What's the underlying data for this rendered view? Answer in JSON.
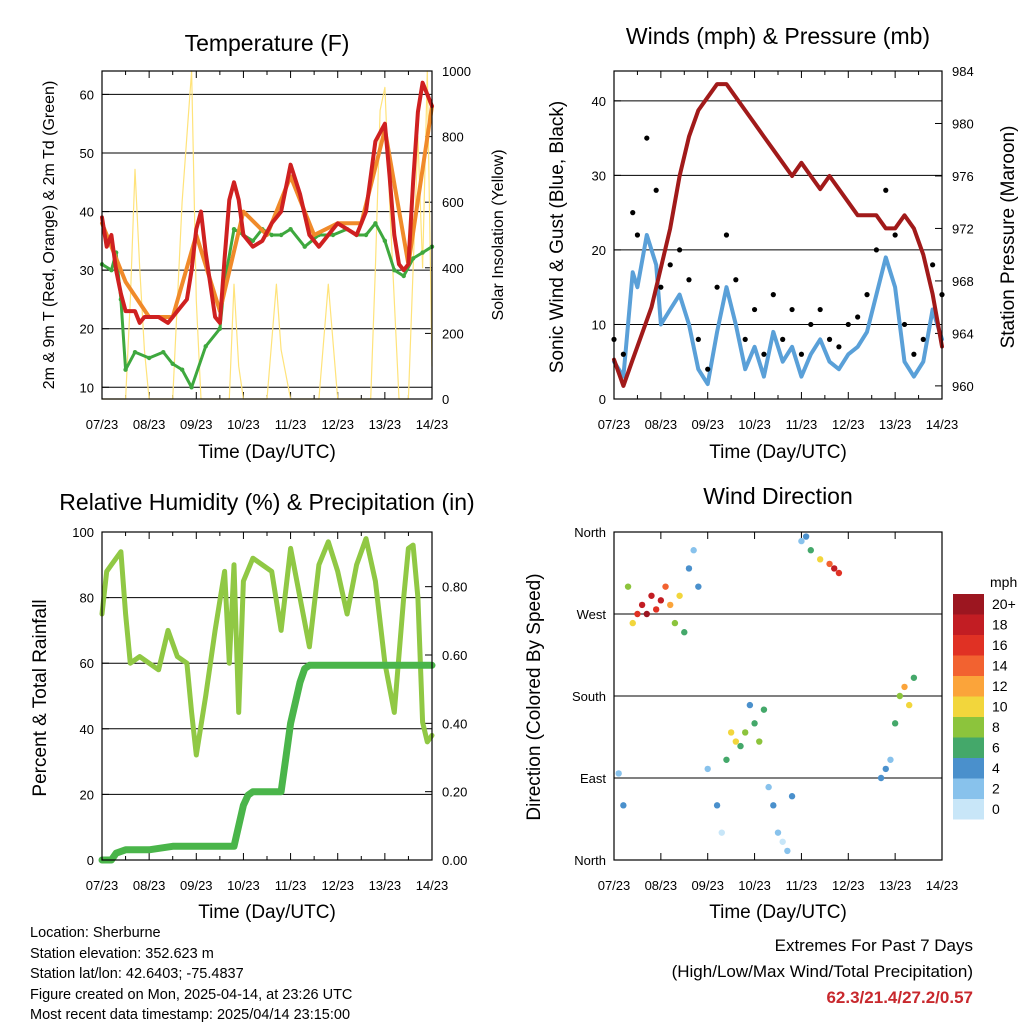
{
  "colors": {
    "temp_2m": "#cf2020",
    "temp_9m": "#f08a2a",
    "dewpoint": "#3ea83e",
    "solar": "#ffe37a",
    "gust": "#000000",
    "wind": "#5aa0d8",
    "pressure": "#a11a1a",
    "rh": "#90c844",
    "precip": "#4ab54a",
    "wind_scale": [
      "#c8e6f8",
      "#88c2ec",
      "#4a90cc",
      "#44a86a",
      "#8cc43c",
      "#f2d63c",
      "#fba43a",
      "#f26230",
      "#e03124",
      "#c21d23",
      "#9c1620"
    ]
  },
  "footer": {
    "location": "Location: Sherburne",
    "elevation": "Station elevation: 352.623 m",
    "latlon": "Station lat/lon: 42.6403; -75.4837",
    "created": "Figure created on Mon, 2025-04-14, at 23:26 UTC",
    "recent": "Most recent data timestamp: 2025/04/14 23:15:00"
  },
  "extremes": {
    "title": "Extremes For Past 7 Days",
    "subtitle": "(High/Low/Max Wind/Total Precipitation)",
    "values": "62.3/21.4/27.2/0.57"
  },
  "chart_data": [
    {
      "type": "line",
      "title": "Temperature (F)",
      "xlabel": "Time (Day/UTC)",
      "ylabel": "2m & 9m T (Red, Orange) & 2m Td (Green)",
      "ylabel_right": "Solar Insolation (Yellow)",
      "x_ticks": [
        "07/23",
        "08/23",
        "09/23",
        "10/23",
        "11/23",
        "12/23",
        "13/23",
        "14/23"
      ],
      "xlim": [
        0,
        7
      ],
      "ylim": [
        8,
        64
      ],
      "y_ticks": [
        10,
        20,
        30,
        40,
        50,
        60
      ],
      "ylim_right": [
        0,
        1000
      ],
      "y_ticks_right": [
        0,
        200,
        400,
        600,
        800,
        1000
      ],
      "grid": "horizontal",
      "series": [
        {
          "name": "2m T",
          "axis": "left",
          "x": [
            0,
            0.1,
            0.2,
            0.3,
            0.4,
            0.5,
            0.6,
            0.7,
            0.8,
            0.9,
            1.0,
            1.2,
            1.4,
            1.6,
            1.8,
            1.9,
            2.0,
            2.1,
            2.2,
            2.4,
            2.5,
            2.6,
            2.7,
            2.8,
            2.9,
            3.0,
            3.2,
            3.4,
            3.6,
            3.8,
            4.0,
            4.2,
            4.4,
            4.6,
            4.8,
            5.0,
            5.2,
            5.4,
            5.6,
            5.8,
            6.0,
            6.1,
            6.2,
            6.3,
            6.4,
            6.5,
            6.6,
            6.7,
            6.8,
            6.9,
            7.0
          ],
          "y": [
            39,
            34,
            36,
            30,
            26,
            23,
            23,
            23,
            21,
            22,
            22,
            22,
            21,
            23,
            25,
            30,
            37,
            40,
            33,
            22,
            21,
            32,
            42,
            45,
            42,
            36,
            34,
            35,
            38,
            40,
            48,
            43,
            36,
            34,
            36,
            38,
            37,
            36,
            40,
            52,
            55,
            46,
            36,
            31,
            30,
            31,
            45,
            57,
            62,
            60,
            58
          ]
        },
        {
          "name": "9m T",
          "axis": "left",
          "x": [
            0,
            0.5,
            1.0,
            1.5,
            2.0,
            2.5,
            3.0,
            3.5,
            4.0,
            4.5,
            5.0,
            5.5,
            6.0,
            6.5,
            7.0
          ],
          "y": [
            38,
            28,
            22,
            22,
            36,
            23,
            40,
            36,
            46,
            36,
            38,
            38,
            54,
            31,
            58
          ]
        },
        {
          "name": "2m Td",
          "axis": "left",
          "x": [
            0,
            0.2,
            0.3,
            0.4,
            0.5,
            0.7,
            1.0,
            1.3,
            1.5,
            1.7,
            1.9,
            2.2,
            2.5,
            2.6,
            2.8,
            3.0,
            3.2,
            3.4,
            3.6,
            3.8,
            4.0,
            4.3,
            4.6,
            4.9,
            5.2,
            5.4,
            5.6,
            5.8,
            6.0,
            6.2,
            6.4,
            6.6,
            6.8,
            7.0
          ],
          "y": [
            31,
            30,
            33,
            25,
            13,
            16,
            15,
            16,
            14,
            13,
            10,
            17,
            20,
            28,
            37,
            36,
            35,
            37,
            36,
            36,
            37,
            34,
            36,
            36,
            37,
            36,
            36,
            38,
            35,
            30,
            29,
            32,
            33,
            34
          ]
        },
        {
          "name": "Solar",
          "axis": "right",
          "x": [
            0,
            0.5,
            0.6,
            0.7,
            0.8,
            0.9,
            1.0,
            1.5,
            1.7,
            1.9,
            2.0,
            2.1,
            2.3,
            2.5,
            2.7,
            2.8,
            2.9,
            3.0,
            3.3,
            3.5,
            3.7,
            3.8,
            4.0,
            4.3,
            4.6,
            4.8,
            5.0,
            5.2,
            5.5,
            5.7,
            5.8,
            5.9,
            6.0,
            6.1,
            6.3,
            6.5,
            6.7,
            6.8,
            6.9,
            7.0
          ],
          "y": [
            0,
            0,
            300,
            700,
            400,
            150,
            0,
            0,
            600,
            1000,
            300,
            0,
            0,
            0,
            0,
            350,
            100,
            0,
            0,
            0,
            350,
            150,
            0,
            0,
            0,
            350,
            0,
            0,
            0,
            0,
            400,
            880,
            950,
            600,
            0,
            0,
            800,
            400,
            1000,
            100
          ]
        }
      ]
    },
    {
      "type": "line",
      "title": "Winds (mph) & Pressure (mb)",
      "xlabel": "Time (Day/UTC)",
      "ylabel": "Sonic Wind & Gust (Blue, Black)",
      "ylabel_right": "Station Pressure (Maroon)",
      "x_ticks": [
        "07/23",
        "08/23",
        "09/23",
        "10/23",
        "11/23",
        "12/23",
        "13/23",
        "14/23"
      ],
      "xlim": [
        0,
        7
      ],
      "ylim": [
        0,
        44
      ],
      "y_ticks": [
        0,
        10,
        20,
        30,
        40
      ],
      "ylim_right": [
        959,
        984
      ],
      "y_ticks_right": [
        960,
        964,
        968,
        972,
        976,
        980,
        984
      ],
      "grid": "horizontal",
      "series": [
        {
          "name": "Gust",
          "axis": "left",
          "x": [
            0,
            0.2,
            0.4,
            0.5,
            0.7,
            0.9,
            1.0,
            1.2,
            1.4,
            1.6,
            1.8,
            2.0,
            2.2,
            2.4,
            2.6,
            2.8,
            3.0,
            3.2,
            3.4,
            3.6,
            3.8,
            4.0,
            4.2,
            4.4,
            4.6,
            4.8,
            5.0,
            5.2,
            5.4,
            5.6,
            5.8,
            6.0,
            6.2,
            6.4,
            6.6,
            6.8,
            7.0
          ],
          "y": [
            8,
            6,
            25,
            22,
            35,
            28,
            15,
            18,
            20,
            16,
            8,
            4,
            15,
            22,
            16,
            8,
            12,
            6,
            14,
            8,
            12,
            6,
            10,
            12,
            8,
            7,
            10,
            11,
            14,
            20,
            28,
            22,
            10,
            6,
            8,
            18,
            14
          ]
        },
        {
          "name": "Wind",
          "axis": "left",
          "x": [
            0,
            0.2,
            0.4,
            0.5,
            0.7,
            0.9,
            1.0,
            1.2,
            1.4,
            1.6,
            1.8,
            2.0,
            2.2,
            2.4,
            2.6,
            2.8,
            3.0,
            3.2,
            3.4,
            3.6,
            3.8,
            4.0,
            4.2,
            4.4,
            4.6,
            4.8,
            5.0,
            5.2,
            5.4,
            5.6,
            5.8,
            6.0,
            6.2,
            6.4,
            6.6,
            6.8,
            7.0
          ],
          "y": [
            5,
            3,
            17,
            15,
            22,
            18,
            10,
            12,
            14,
            10,
            4,
            2,
            9,
            15,
            10,
            4,
            7,
            3,
            9,
            5,
            7,
            3,
            6,
            8,
            5,
            4,
            6,
            7,
            9,
            14,
            19,
            15,
            5,
            3,
            5,
            12,
            8
          ]
        },
        {
          "name": "Pressure",
          "axis": "right",
          "x": [
            0,
            0.2,
            0.4,
            0.6,
            0.8,
            1.0,
            1.2,
            1.4,
            1.6,
            1.8,
            2.0,
            2.2,
            2.4,
            2.6,
            2.8,
            3.0,
            3.2,
            3.4,
            3.6,
            3.8,
            4.0,
            4.2,
            4.4,
            4.6,
            4.8,
            5.0,
            5.2,
            5.4,
            5.6,
            5.8,
            6.0,
            6.2,
            6.4,
            6.6,
            6.8,
            7.0
          ],
          "y": [
            962,
            960,
            962,
            964,
            966,
            969,
            972,
            976,
            979,
            981,
            982,
            983,
            983,
            982,
            981,
            980,
            979,
            978,
            977,
            976,
            977,
            976,
            975,
            976,
            975,
            974,
            973,
            973,
            973,
            972,
            972,
            973,
            972,
            970,
            967,
            963
          ]
        }
      ]
    },
    {
      "type": "line",
      "title": "Relative Humidity (%) & Precipitation (in)",
      "xlabel": "Time (Day/UTC)",
      "ylabel": "Percent & Total Rainfall",
      "x_ticks": [
        "07/23",
        "08/23",
        "09/23",
        "10/23",
        "11/23",
        "12/23",
        "13/23",
        "14/23"
      ],
      "xlim": [
        0,
        7
      ],
      "ylim": [
        0,
        100
      ],
      "y_ticks": [
        0,
        20,
        40,
        60,
        80,
        100
      ],
      "ylim_right": [
        0,
        0.96
      ],
      "y_ticks_right": [
        0.0,
        0.2,
        0.4,
        0.6,
        0.8
      ],
      "grid": "horizontal",
      "series": [
        {
          "name": "RH",
          "axis": "left",
          "x": [
            0,
            0.1,
            0.2,
            0.4,
            0.5,
            0.6,
            0.8,
            1.0,
            1.2,
            1.4,
            1.6,
            1.8,
            1.9,
            2.0,
            2.2,
            2.4,
            2.6,
            2.7,
            2.8,
            2.9,
            3.0,
            3.2,
            3.4,
            3.6,
            3.8,
            4.0,
            4.2,
            4.4,
            4.6,
            4.8,
            5.0,
            5.2,
            5.4,
            5.6,
            5.8,
            6.0,
            6.2,
            6.4,
            6.5,
            6.6,
            6.7,
            6.8,
            6.9,
            7.0
          ],
          "y": [
            75,
            88,
            90,
            94,
            75,
            60,
            62,
            60,
            58,
            70,
            62,
            60,
            45,
            32,
            50,
            70,
            88,
            60,
            90,
            45,
            85,
            92,
            90,
            88,
            70,
            95,
            80,
            65,
            90,
            97,
            88,
            75,
            90,
            98,
            85,
            60,
            45,
            80,
            95,
            96,
            80,
            42,
            36,
            38
          ]
        },
        {
          "name": "Precipitation",
          "axis": "right",
          "x": [
            0,
            0.2,
            0.3,
            0.5,
            1.0,
            1.5,
            2.0,
            2.5,
            2.8,
            2.9,
            3.0,
            3.1,
            3.2,
            3.4,
            3.6,
            3.8,
            3.9,
            4.0,
            4.1,
            4.2,
            4.3,
            4.4,
            4.5,
            4.8,
            5.0,
            5.5,
            6.0,
            6.5,
            7.0
          ],
          "y": [
            0.0,
            0.0,
            0.02,
            0.03,
            0.03,
            0.04,
            0.04,
            0.04,
            0.04,
            0.1,
            0.16,
            0.19,
            0.2,
            0.2,
            0.2,
            0.2,
            0.3,
            0.4,
            0.46,
            0.52,
            0.56,
            0.57,
            0.57,
            0.57,
            0.57,
            0.57,
            0.57,
            0.57,
            0.57
          ]
        }
      ]
    },
    {
      "type": "scatter",
      "title": "Wind Direction",
      "xlabel": "Time (Day/UTC)",
      "ylabel": "Direction (Colored By Speed)",
      "x_ticks": [
        "07/23",
        "08/23",
        "09/23",
        "10/23",
        "11/23",
        "12/23",
        "13/23",
        "14/23"
      ],
      "xlim": [
        0,
        7
      ],
      "y_categories": [
        "North",
        "East",
        "South",
        "West",
        "North"
      ],
      "ylim": [
        0,
        360
      ],
      "colorbar": {
        "title": "mph",
        "labels": [
          "20+",
          "18",
          "16",
          "14",
          "12",
          "10",
          "8",
          "6",
          "4",
          "2",
          "0"
        ]
      },
      "points": [
        [
          0.1,
          95,
          3
        ],
        [
          0.2,
          60,
          4
        ],
        [
          0.3,
          300,
          8
        ],
        [
          0.4,
          260,
          10
        ],
        [
          0.5,
          270,
          16
        ],
        [
          0.6,
          280,
          18
        ],
        [
          0.7,
          270,
          20
        ],
        [
          0.8,
          290,
          19
        ],
        [
          0.9,
          275,
          16
        ],
        [
          1.0,
          285,
          18
        ],
        [
          1.1,
          300,
          14
        ],
        [
          1.2,
          280,
          12
        ],
        [
          1.3,
          260,
          9
        ],
        [
          1.4,
          290,
          11
        ],
        [
          1.5,
          250,
          6
        ],
        [
          1.6,
          320,
          4
        ],
        [
          1.7,
          340,
          3
        ],
        [
          1.8,
          300,
          4
        ],
        [
          2.0,
          100,
          2
        ],
        [
          2.2,
          60,
          4
        ],
        [
          2.3,
          30,
          1
        ],
        [
          2.4,
          110,
          6
        ],
        [
          2.5,
          140,
          10
        ],
        [
          2.6,
          130,
          11
        ],
        [
          2.7,
          125,
          6
        ],
        [
          2.8,
          140,
          9
        ],
        [
          2.9,
          170,
          5
        ],
        [
          3.0,
          150,
          7
        ],
        [
          3.1,
          130,
          8
        ],
        [
          3.2,
          165,
          6
        ],
        [
          3.3,
          80,
          3
        ],
        [
          3.4,
          60,
          4
        ],
        [
          3.5,
          30,
          2
        ],
        [
          3.6,
          20,
          1
        ],
        [
          3.7,
          10,
          2
        ],
        [
          3.8,
          70,
          4
        ],
        [
          4.0,
          350,
          3
        ],
        [
          4.1,
          355,
          4
        ],
        [
          4.2,
          340,
          6
        ],
        [
          4.4,
          330,
          10
        ],
        [
          4.6,
          325,
          14
        ],
        [
          4.7,
          320,
          18
        ],
        [
          4.8,
          315,
          16
        ],
        [
          5.7,
          90,
          5
        ],
        [
          5.8,
          100,
          4
        ],
        [
          5.9,
          110,
          3
        ],
        [
          6.0,
          150,
          6
        ],
        [
          6.1,
          180,
          8
        ],
        [
          6.2,
          190,
          12
        ],
        [
          6.3,
          170,
          10
        ],
        [
          6.4,
          200,
          6
        ]
      ]
    }
  ]
}
